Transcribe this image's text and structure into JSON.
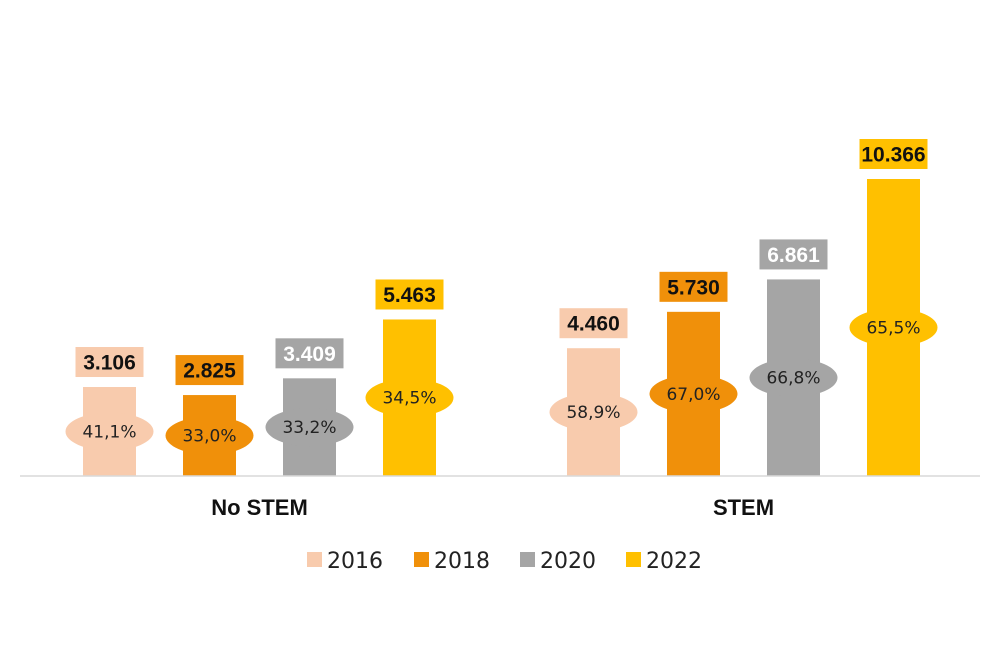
{
  "chart_data": {
    "type": "bar",
    "categories": [
      "No STEM",
      "STEM"
    ],
    "series": [
      {
        "name": "2016",
        "color": "#f8cbad",
        "values": [
          3106,
          4460
        ],
        "value_labels": [
          "3.106",
          "4.460"
        ],
        "percent_labels": [
          "41,1%",
          "58,9%"
        ],
        "label_text_color": "#111111"
      },
      {
        "name": "2018",
        "color": "#f0900a",
        "values": [
          2825,
          5730
        ],
        "value_labels": [
          "2.825",
          "5.730"
        ],
        "percent_labels": [
          "33,0%",
          "67,0%"
        ],
        "label_text_color": "#111111"
      },
      {
        "name": "2020",
        "color": "#a5a5a5",
        "values": [
          3409,
          6861
        ],
        "value_labels": [
          "3.409",
          "6.861"
        ],
        "percent_labels": [
          "33,2%",
          "66,8%"
        ],
        "label_text_color": "#ffffff"
      },
      {
        "name": "2022",
        "color": "#ffc000",
        "values": [
          5463,
          10366
        ],
        "value_labels": [
          "5.463",
          "10.366"
        ],
        "percent_labels": [
          "34,5%",
          "65,5%"
        ],
        "label_text_color": "#111111"
      }
    ],
    "title": "",
    "xlabel": "",
    "ylabel": "",
    "ylim": [
      0,
      10366
    ],
    "grid": false,
    "legend": "bottom",
    "axis_color": "#d9d9d9"
  }
}
